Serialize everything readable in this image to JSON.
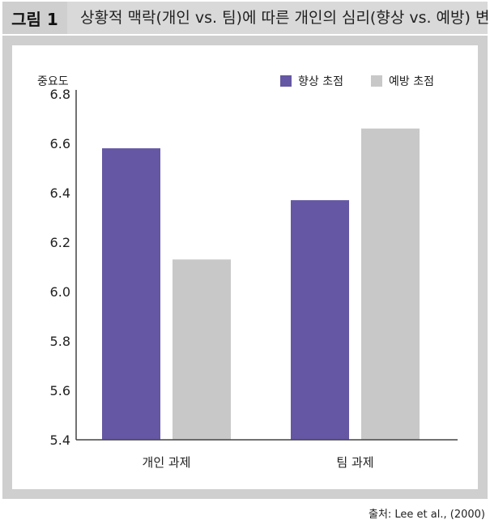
{
  "figure": {
    "label": "그림 1",
    "title": "상황적 맥락(개인 vs. 팀)에 따른 개인의 심리(향상 vs. 예방) 변화",
    "source": "출처: Lee et al., (2000)"
  },
  "chart_data": {
    "type": "bar",
    "ylabel": "중요도",
    "ylim": [
      5.4,
      6.8
    ],
    "yticks": [
      "5.4",
      "5.6",
      "5.8",
      "6.0",
      "6.2",
      "6.4",
      "6.6",
      "6.8"
    ],
    "categories": [
      "개인 과제",
      "팀 과제"
    ],
    "series": [
      {
        "name": "향상 초점",
        "color": "#6557a3",
        "values": [
          6.58,
          6.37
        ]
      },
      {
        "name": "예방 초점",
        "color": "#c8c8c8",
        "values": [
          6.13,
          6.66
        ]
      }
    ],
    "legend": "top-right",
    "grid": false
  }
}
